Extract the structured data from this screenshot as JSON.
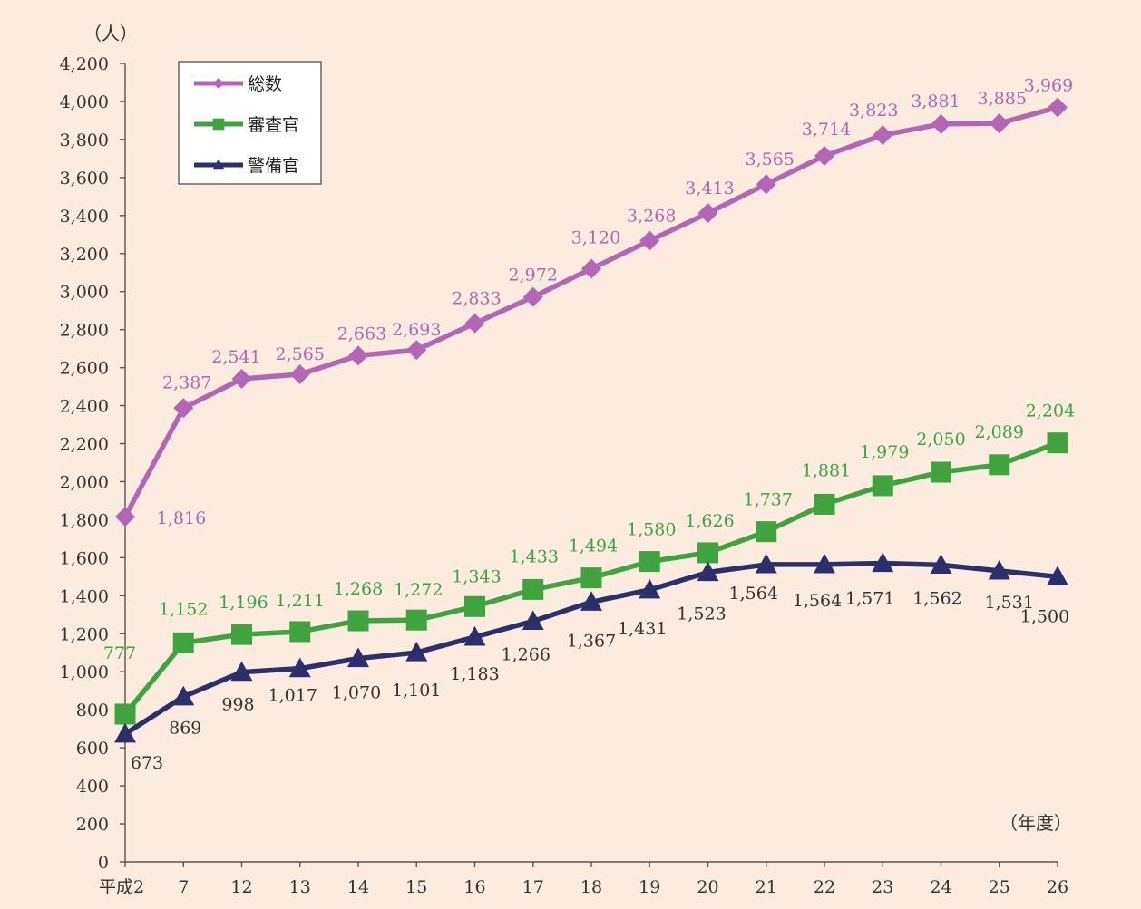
{
  "chart_data": {
    "type": "line",
    "y_unit_label": "（人）",
    "x_unit_label": "（年度）",
    "categories": [
      "平成2",
      "7",
      "12",
      "13",
      "14",
      "15",
      "16",
      "17",
      "18",
      "19",
      "20",
      "21",
      "22",
      "23",
      "24",
      "25",
      "26"
    ],
    "ylim": [
      0,
      4200
    ],
    "yticks": [
      0,
      200,
      400,
      600,
      800,
      1000,
      1200,
      1400,
      1600,
      1800,
      2000,
      2200,
      2400,
      2600,
      2800,
      3000,
      3200,
      3400,
      3600,
      3800,
      4000,
      4200
    ],
    "ytick_labels": [
      "0",
      "200",
      "400",
      "600",
      "800",
      "1,000",
      "1,200",
      "1,400",
      "1,600",
      "1,800",
      "2,000",
      "2,200",
      "2,400",
      "2,600",
      "2,800",
      "3,000",
      "3,200",
      "3,400",
      "3,600",
      "3,800",
      "4,000",
      "4,200"
    ],
    "grid": false,
    "legend_position": "top-left",
    "series": [
      {
        "name": "総数",
        "marker": "diamond",
        "color": "#b266b5",
        "values": [
          1816,
          2387,
          2541,
          2565,
          2663,
          2693,
          2833,
          2972,
          3120,
          3268,
          3413,
          3565,
          3714,
          3823,
          3881,
          3885,
          3969
        ],
        "labels": [
          "1,816",
          "2,387",
          "2,541",
          "2,565",
          "2,663",
          "2,693",
          "2,833",
          "2,972",
          "3,120",
          "3,268",
          "3,413",
          "3,565",
          "3,714",
          "3,823",
          "3,881",
          "3,885",
          "3,969"
        ]
      },
      {
        "name": "審査官",
        "marker": "square",
        "color": "#3fa33f",
        "values": [
          777,
          1152,
          1196,
          1211,
          1268,
          1272,
          1343,
          1433,
          1494,
          1580,
          1626,
          1737,
          1881,
          1979,
          2050,
          2089,
          2204
        ],
        "labels": [
          "777",
          "1,152",
          "1,196",
          "1,211",
          "1,268",
          "1,272",
          "1,343",
          "1,433",
          "1,494",
          "1,580",
          "1,626",
          "1,737",
          "1,881",
          "1,979",
          "2,050",
          "2,089",
          "2,204"
        ]
      },
      {
        "name": "警備官",
        "marker": "triangle",
        "color": "#2b2f6b",
        "values": [
          673,
          869,
          998,
          1017,
          1070,
          1101,
          1183,
          1266,
          1367,
          1431,
          1523,
          1564,
          1564,
          1571,
          1562,
          1531,
          1500
        ],
        "labels": [
          "673",
          "869",
          "998",
          "1,017",
          "1,070",
          "1,101",
          "1,183",
          "1,266",
          "1,367",
          "1,431",
          "1,523",
          "1,564",
          "1,564",
          "1,571",
          "1,562",
          "1,531",
          "1,500"
        ]
      }
    ]
  }
}
